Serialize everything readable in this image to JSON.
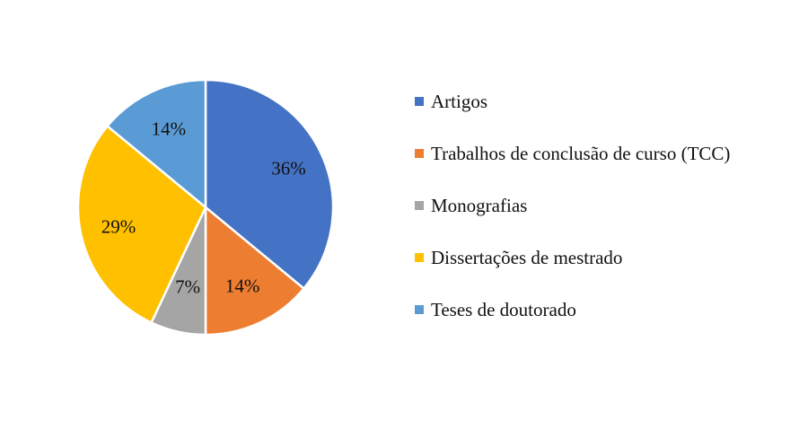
{
  "chart_data": {
    "type": "pie",
    "title": "",
    "categories": [
      "Artigos",
      "Trabalhos de conclusão de curso (TCC)",
      "Monografias",
      "Dissertações de mestrado",
      "Teses de doutorado"
    ],
    "values": [
      36,
      14,
      7,
      29,
      14
    ],
    "labels": [
      "36%",
      "14%",
      "7%",
      "29%",
      "14%"
    ],
    "colors": [
      "#4472C4",
      "#ED7D31",
      "#A5A5A5",
      "#FFC000",
      "#5B9BD5"
    ],
    "start_angle": "12 o'clock",
    "direction": "clockwise",
    "legend": "right"
  }
}
